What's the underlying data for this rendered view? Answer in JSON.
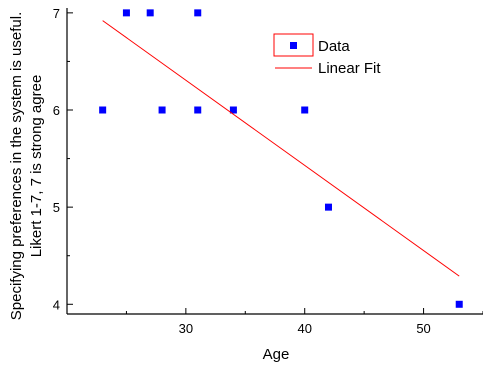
{
  "chart_data": {
    "type": "scatter",
    "xlabel": "Age",
    "ylabel_lines": [
      "Specifying preferences in the system is useful.",
      "Likert 1-7, 7 is strong agree"
    ],
    "xlim": [
      20,
      55
    ],
    "ylim": [
      3.9,
      7.05
    ],
    "x_ticks": [
      30,
      40,
      50
    ],
    "y_ticks": [
      4,
      5,
      6,
      7
    ],
    "x_ticks_labels": [
      "30",
      "40",
      "50"
    ],
    "y_ticks_labels": [
      "4",
      "5",
      "6",
      "7"
    ],
    "grid": false,
    "legend_position": "top-right",
    "series": [
      {
        "name": "Data",
        "kind": "scatter",
        "color": "#0000ff",
        "points": [
          {
            "x": 23,
            "y": 6
          },
          {
            "x": 25,
            "y": 7
          },
          {
            "x": 27,
            "y": 7
          },
          {
            "x": 28,
            "y": 6
          },
          {
            "x": 31,
            "y": 7
          },
          {
            "x": 31,
            "y": 6
          },
          {
            "x": 34,
            "y": 6
          },
          {
            "x": 40,
            "y": 6
          },
          {
            "x": 42,
            "y": 5
          },
          {
            "x": 53,
            "y": 4
          }
        ]
      },
      {
        "name": "Linear Fit",
        "kind": "line",
        "color": "#ff0000",
        "points": [
          {
            "x": 23,
            "y": 6.92
          },
          {
            "x": 53,
            "y": 4.29
          }
        ]
      }
    ]
  }
}
